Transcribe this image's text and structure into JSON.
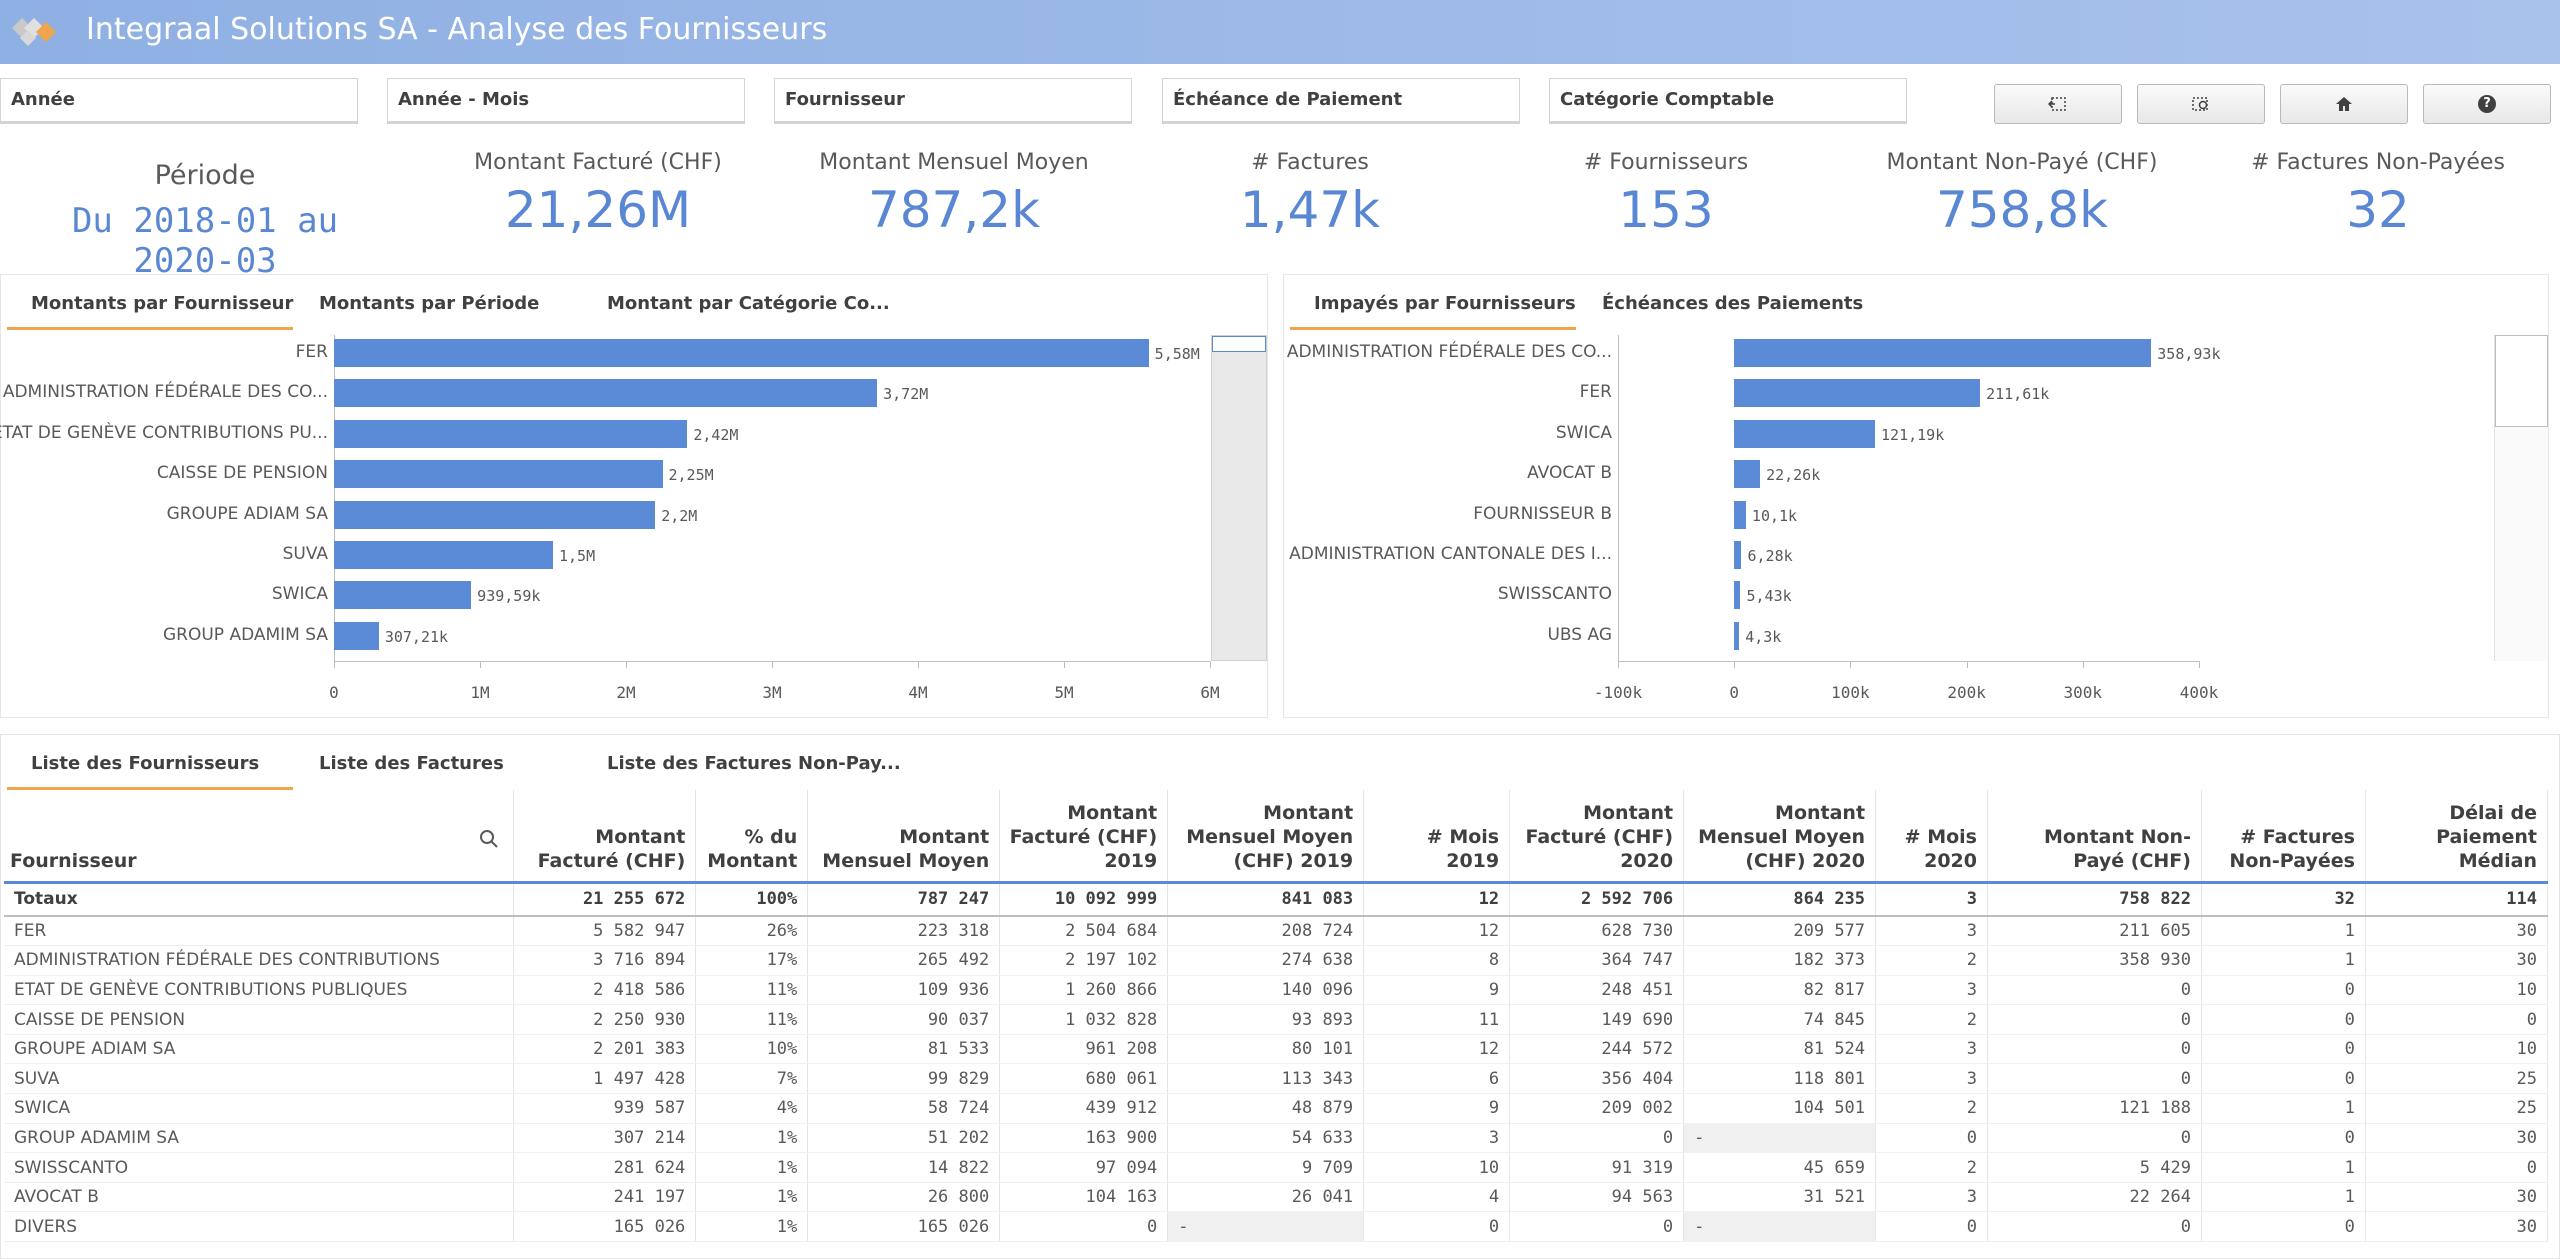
{
  "app": {
    "title": "Integraal Solutions SA - Analyse des Fournisseurs"
  },
  "filters": [
    "Année",
    "Année - Mois",
    "Fournisseur",
    "Échéance de Paiement",
    "Catégorie Comptable"
  ],
  "toolbar": {
    "back_icon": "selection-back-icon",
    "clear_icon": "clear-selections-icon",
    "home_icon": "home-icon",
    "help_label": "?"
  },
  "kpis": {
    "period_label": "Période",
    "period_value": "Du 2018-01 au 2020-03",
    "items": [
      {
        "label": "Montant Facturé (CHF)",
        "value": "21,26M"
      },
      {
        "label": "Montant Mensuel Moyen",
        "value": "787,2k"
      },
      {
        "label": "# Factures",
        "value": "1,47k"
      },
      {
        "label": "# Fournisseurs",
        "value": "153"
      },
      {
        "label": "Montant Non-Payé (CHF)",
        "value": "758,8k"
      },
      {
        "label": "# Factures Non-Payées",
        "value": "32"
      }
    ]
  },
  "left_panel": {
    "tabs": [
      "Montants par Fournisseur",
      "Montants par Période",
      "Montant par Catégorie Co..."
    ],
    "axis_ticks": [
      "0",
      "1M",
      "2M",
      "3M",
      "4M",
      "5M",
      "6M"
    ]
  },
  "right_panel": {
    "tabs": [
      "Impayés par Fournisseurs",
      "Échéances des Paiements"
    ],
    "axis_ticks": [
      "-100k",
      "0",
      "100k",
      "200k",
      "300k",
      "400k"
    ]
  },
  "chart_data": [
    {
      "type": "bar",
      "orientation": "horizontal",
      "categories": [
        "FER",
        "ADMINISTRATION FÉDÉRALE DES CO...",
        "ETAT DE GENÈVE CONTRIBUTIONS PU...",
        "CAISSE DE PENSION",
        "GROUPE ADIAM SA",
        "SUVA",
        "SWICA",
        "GROUP ADAMIM SA"
      ],
      "values": [
        5580000,
        3720000,
        2420000,
        2250000,
        2200000,
        1500000,
        939590,
        307210
      ],
      "value_labels": [
        "5,58M",
        "3,72M",
        "2,42M",
        "2,25M",
        "2,2M",
        "1,5M",
        "939,59k",
        "307,21k"
      ],
      "xlim": [
        0,
        6000000
      ]
    },
    {
      "type": "bar",
      "orientation": "horizontal",
      "categories": [
        "ADMINISTRATION FÉDÉRALE DES CO...",
        "FER",
        "SWICA",
        "AVOCAT B",
        "FOURNISSEUR B",
        "ADMINISTRATION CANTONALE DES I...",
        "SWISSCANTO",
        "UBS AG"
      ],
      "values": [
        358930,
        211610,
        121190,
        22260,
        10100,
        6280,
        5430,
        4300
      ],
      "value_labels": [
        "358,93k",
        "211,61k",
        "121,19k",
        "22,26k",
        "10,1k",
        "6,28k",
        "5,43k",
        "4,3k"
      ],
      "xlim": [
        -100000,
        400000
      ]
    }
  ],
  "table_panel": {
    "tabs": [
      "Liste des Fournisseurs",
      "Liste des Factures",
      "Liste des Factures Non-Pay..."
    ],
    "headers": [
      "Fournisseur",
      "Montant Facturé (CHF)",
      "% du Montant",
      "Montant Mensuel Moyen",
      "Montant Facturé (CHF) 2019",
      "Montant Mensuel Moyen (CHF) 2019",
      "# Mois 2019",
      "Montant Facturé (CHF) 2020",
      "Montant Mensuel Moyen (CHF) 2020",
      "# Mois 2020",
      "Montant Non-Payé (CHF)",
      "# Factures Non-Payées",
      "Délai de Paiement Médian"
    ],
    "totals": [
      "Totaux",
      "21 255 672",
      "100%",
      "787 247",
      "10 092 999",
      "841 083",
      "12",
      "2 592 706",
      "864 235",
      "3",
      "758 822",
      "32",
      "114"
    ],
    "rows": [
      [
        "FER",
        "5 582 947",
        "26%",
        "223 318",
        "2 504 684",
        "208 724",
        "12",
        "628 730",
        "209 577",
        "3",
        "211 605",
        "1",
        "30"
      ],
      [
        "ADMINISTRATION FÉDÉRALE DES CONTRIBUTIONS",
        "3 716 894",
        "17%",
        "265 492",
        "2 197 102",
        "274 638",
        "8",
        "364 747",
        "182 373",
        "2",
        "358 930",
        "1",
        "30"
      ],
      [
        "ETAT DE GENÈVE CONTRIBUTIONS PUBLIQUES",
        "2 418 586",
        "11%",
        "109 936",
        "1 260 866",
        "140 096",
        "9",
        "248 451",
        "82 817",
        "3",
        "0",
        "0",
        "10"
      ],
      [
        "CAISSE DE PENSION",
        "2 250 930",
        "11%",
        "90 037",
        "1 032 828",
        "93 893",
        "11",
        "149 690",
        "74 845",
        "2",
        "0",
        "0",
        "0"
      ],
      [
        "GROUPE ADIAM SA",
        "2 201 383",
        "10%",
        "81 533",
        "961 208",
        "80 101",
        "12",
        "244 572",
        "81 524",
        "3",
        "0",
        "0",
        "10"
      ],
      [
        "SUVA",
        "1 497 428",
        "7%",
        "99 829",
        "680 061",
        "113 343",
        "6",
        "356 404",
        "118 801",
        "3",
        "0",
        "0",
        "25"
      ],
      [
        "SWICA",
        "939 587",
        "4%",
        "58 724",
        "439 912",
        "48 879",
        "9",
        "209 002",
        "104 501",
        "2",
        "121 188",
        "1",
        "25"
      ],
      [
        "GROUP ADAMIM SA",
        "307 214",
        "1%",
        "51 202",
        "163 900",
        "54 633",
        "3",
        "0",
        "-",
        "0",
        "0",
        "0",
        "30"
      ],
      [
        "SWISSCANTO",
        "281 624",
        "1%",
        "14 822",
        "97 094",
        "9 709",
        "10",
        "91 319",
        "45 659",
        "2",
        "5 429",
        "1",
        "0"
      ],
      [
        "AVOCAT B",
        "241 197",
        "1%",
        "26 800",
        "104 163",
        "26 041",
        "4",
        "94 563",
        "31 521",
        "3",
        "22 264",
        "1",
        "30"
      ],
      [
        "DIVERS",
        "165 026",
        "1%",
        "165 026",
        "0",
        "-",
        "0",
        "0",
        "-",
        "0",
        "0",
        "0",
        "30"
      ]
    ]
  },
  "colors": {
    "bar": "#5b8bd6",
    "kpi": "#5a87d3",
    "tab_accent": "#f0a44b",
    "header_start": "#8fb0e3"
  }
}
